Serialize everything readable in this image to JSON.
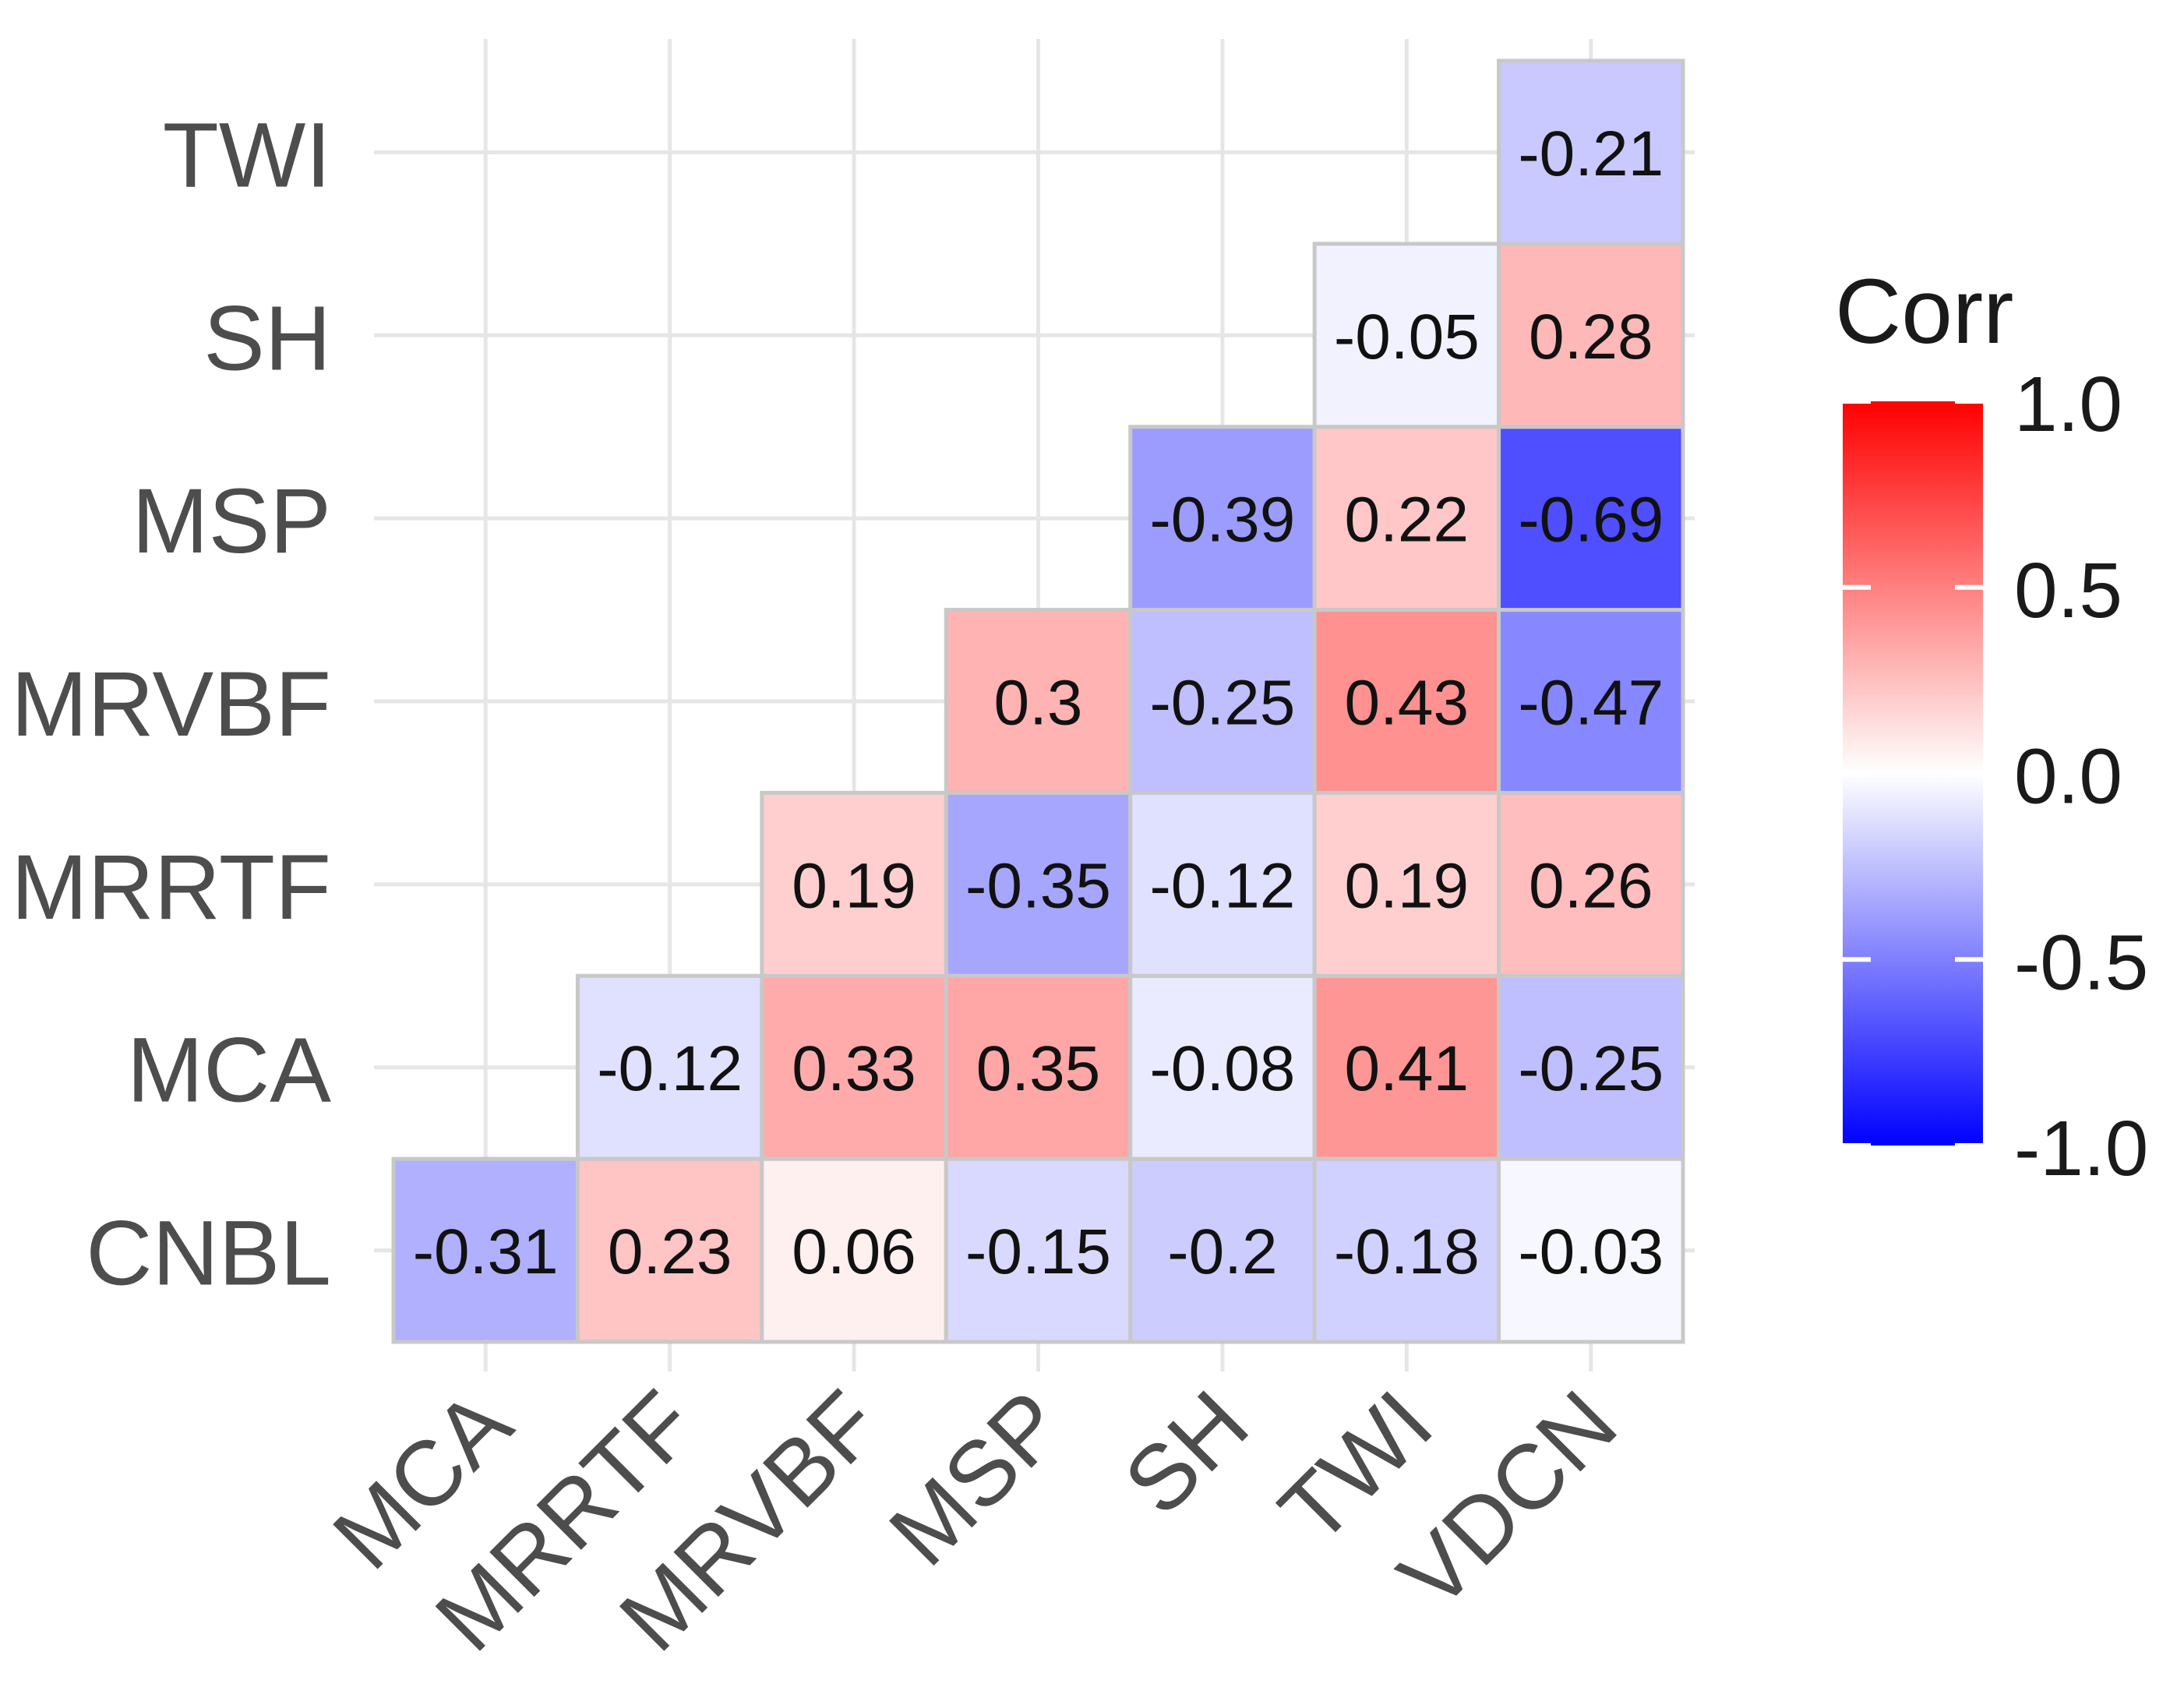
{
  "chart_data": {
    "type": "heatmap",
    "title": "",
    "xlabel": "",
    "ylabel": "",
    "x_categories": [
      "MCA",
      "MRRTF",
      "MRVBF",
      "MSP",
      "SH",
      "TWI",
      "VDCN"
    ],
    "y_categories": [
      "CNBL",
      "MCA",
      "MRRTF",
      "MRVBF",
      "MSP",
      "SH",
      "TWI"
    ],
    "cells": [
      {
        "x": "MCA",
        "y": "CNBL",
        "value": -0.31,
        "label": "-0.31"
      },
      {
        "x": "MRRTF",
        "y": "CNBL",
        "value": 0.23,
        "label": "0.23"
      },
      {
        "x": "MRVBF",
        "y": "CNBL",
        "value": 0.06,
        "label": "0.06"
      },
      {
        "x": "MSP",
        "y": "CNBL",
        "value": -0.15,
        "label": "-0.15"
      },
      {
        "x": "SH",
        "y": "CNBL",
        "value": -0.2,
        "label": "-0.2"
      },
      {
        "x": "TWI",
        "y": "CNBL",
        "value": -0.18,
        "label": "-0.18"
      },
      {
        "x": "VDCN",
        "y": "CNBL",
        "value": -0.03,
        "label": "-0.03"
      },
      {
        "x": "MRRTF",
        "y": "MCA",
        "value": -0.12,
        "label": "-0.12"
      },
      {
        "x": "MRVBF",
        "y": "MCA",
        "value": 0.33,
        "label": "0.33"
      },
      {
        "x": "MSP",
        "y": "MCA",
        "value": 0.35,
        "label": "0.35"
      },
      {
        "x": "SH",
        "y": "MCA",
        "value": -0.08,
        "label": "-0.08"
      },
      {
        "x": "TWI",
        "y": "MCA",
        "value": 0.41,
        "label": "0.41"
      },
      {
        "x": "VDCN",
        "y": "MCA",
        "value": -0.25,
        "label": "-0.25"
      },
      {
        "x": "MRVBF",
        "y": "MRRTF",
        "value": 0.19,
        "label": "0.19"
      },
      {
        "x": "MSP",
        "y": "MRRTF",
        "value": -0.35,
        "label": "-0.35"
      },
      {
        "x": "SH",
        "y": "MRRTF",
        "value": -0.12,
        "label": "-0.12"
      },
      {
        "x": "TWI",
        "y": "MRRTF",
        "value": 0.19,
        "label": "0.19"
      },
      {
        "x": "VDCN",
        "y": "MRRTF",
        "value": 0.26,
        "label": "0.26"
      },
      {
        "x": "MSP",
        "y": "MRVBF",
        "value": 0.3,
        "label": "0.3"
      },
      {
        "x": "SH",
        "y": "MRVBF",
        "value": -0.25,
        "label": "-0.25"
      },
      {
        "x": "TWI",
        "y": "MRVBF",
        "value": 0.43,
        "label": "0.43"
      },
      {
        "x": "VDCN",
        "y": "MRVBF",
        "value": -0.47,
        "label": "-0.47"
      },
      {
        "x": "SH",
        "y": "MSP",
        "value": -0.39,
        "label": "-0.39"
      },
      {
        "x": "TWI",
        "y": "MSP",
        "value": 0.22,
        "label": "0.22"
      },
      {
        "x": "VDCN",
        "y": "MSP",
        "value": -0.69,
        "label": "-0.69"
      },
      {
        "x": "TWI",
        "y": "SH",
        "value": -0.05,
        "label": "-0.05"
      },
      {
        "x": "VDCN",
        "y": "SH",
        "value": 0.28,
        "label": "0.28"
      },
      {
        "x": "VDCN",
        "y": "TWI",
        "value": -0.21,
        "label": "-0.21"
      }
    ],
    "color_scale": {
      "low": "#0000FF",
      "mid": "#FFFFFF",
      "high": "#FF0000",
      "range": [
        -1.0,
        1.0
      ]
    },
    "legend": {
      "title": "Corr",
      "placement": "right",
      "ticks": [
        {
          "value": 1.0,
          "label": "1.0"
        },
        {
          "value": 0.5,
          "label": "0.5"
        },
        {
          "value": 0.0,
          "label": "0.0"
        },
        {
          "value": -0.5,
          "label": "-0.5"
        },
        {
          "value": -1.0,
          "label": "-1.0"
        }
      ]
    },
    "grid": true
  }
}
